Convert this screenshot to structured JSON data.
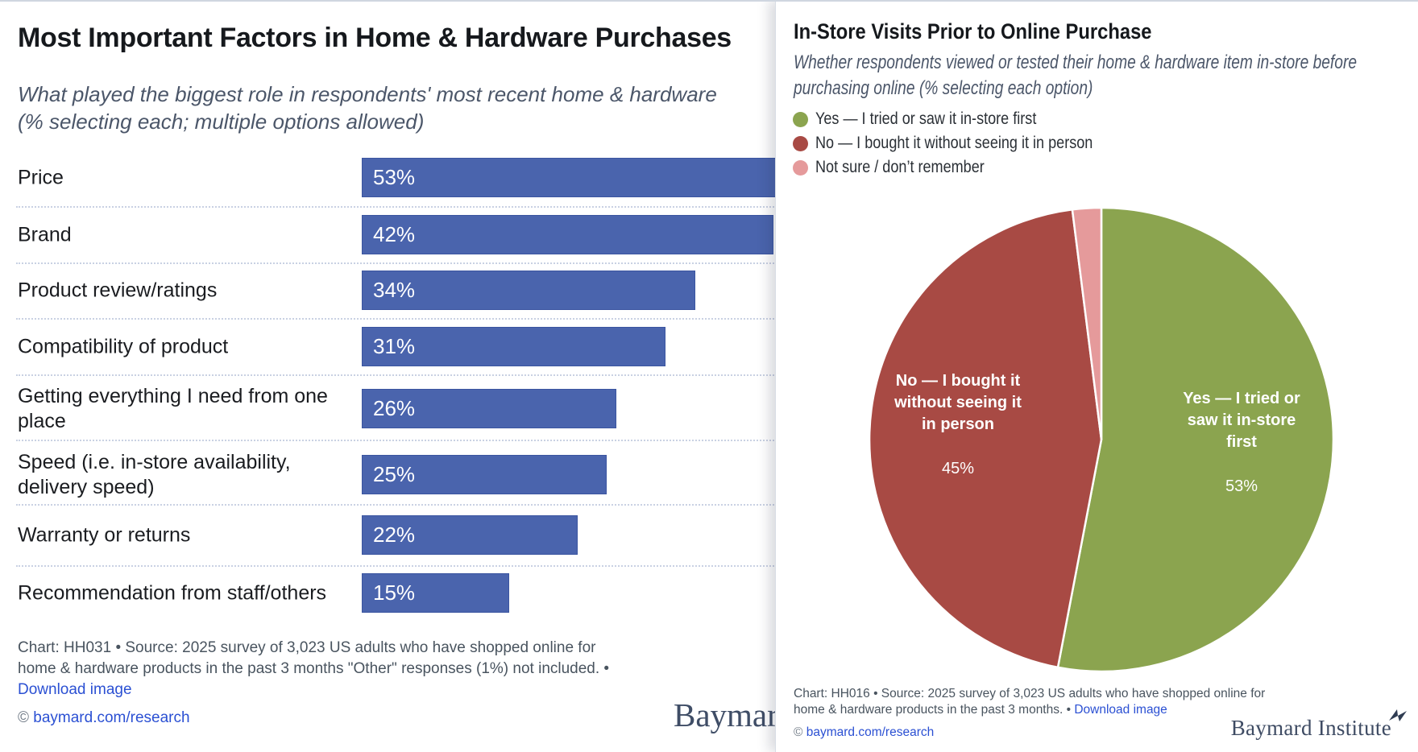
{
  "chart_data": [
    {
      "type": "bar",
      "orientation": "horizontal",
      "title": "Most Important Factors in Home & Hardware Purchases",
      "subtitle": "What played the biggest role in respondents' most recent home & hardware (% selecting each; multiple options allowed)",
      "categories": [
        "Price",
        "Brand",
        "Product review/ratings",
        "Compatibility of product",
        "Getting everything I need from one place",
        "Speed (i.e. in-store availability, delivery speed)",
        "Warranty or returns",
        "Recommendation from staff/others"
      ],
      "values": [
        53,
        42,
        34,
        31,
        26,
        25,
        22,
        15
      ],
      "value_labels": [
        "53%",
        "42%",
        "34%",
        "31%",
        "26%",
        "25%",
        "22%",
        "15%"
      ],
      "unit": "%",
      "bar_color": "#4a64ad",
      "grid": "dotted row separators",
      "value_label_position": "inside-left"
    },
    {
      "type": "pie",
      "title": "In-Store Visits Prior to Online Purchase",
      "labels": [
        "Yes — I tried or saw it in-store first",
        "No — I bought it without seeing it in person",
        "Not sure / don’t remember"
      ],
      "values": [
        53,
        45,
        2
      ],
      "colors": [
        "#8ba44f",
        "#a84a44",
        "#e59a9b"
      ],
      "start_angle": "12 o'clock",
      "direction": "clockwise",
      "legend_position": "top-left",
      "slice_text": [
        {
          "name": "Yes — I tried or\nsaw it in-store\nfirst",
          "pct": "53%"
        },
        {
          "name": "No — I bought it\nwithout seeing it\nin person",
          "pct": "45%"
        }
      ]
    }
  ],
  "left_panel": {
    "title": "Most Important Factors in Home & Hardware Purchases",
    "subtitle_line1": "What played the biggest role in respondents' most recent home & hardware",
    "subtitle_line2": "(% selecting each; multiple options allowed)",
    "footer_line1": "Chart: HH031 • Source: 2025 survey of 3,023 US adults who have shopped online for",
    "footer_line2": "home & hardware products in the past 3 months \"Other\" responses (1%) not included. •",
    "download_label": "Download image",
    "copyright_symbol": "©",
    "copyright_link": "baymard.com/research",
    "watermark": "Baymard"
  },
  "right_panel": {
    "title": "In-Store Visits Prior to Online Purchase",
    "subtitle_line1": "Whether respondents viewed or tested their home & hardware item in-store before",
    "subtitle_line2": "purchasing online (% selecting each option)",
    "footer_line1": "Chart: HH016 • Source: 2025 survey of 3,023 US adults who have shopped online for",
    "footer_line2": "home & hardware products in the past 3 months. •",
    "download_label": "Download image",
    "copyright_symbol": "©",
    "copyright_link": "baymard.com/research",
    "brand": "Baymard Institute"
  },
  "colors": {
    "bar_blue": "#4a64ad",
    "pie_green": "#8ba44f",
    "pie_red": "#a84a44",
    "pie_pink": "#e59a9b",
    "link_blue": "#2b50d3",
    "text_dark": "#16191d",
    "text_muted": "#4b5669"
  }
}
